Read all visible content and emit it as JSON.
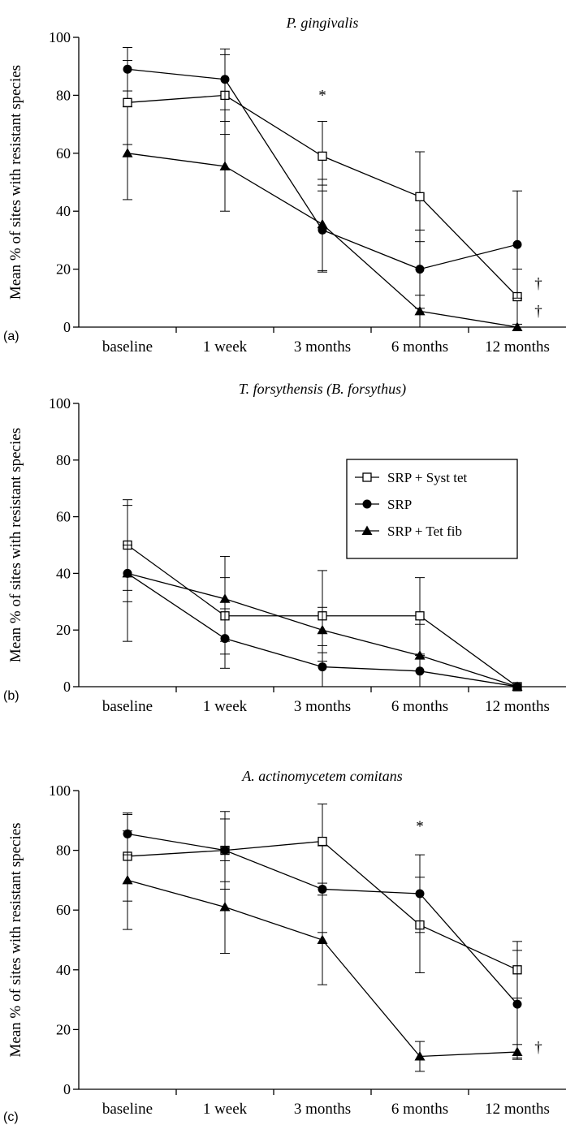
{
  "figure": {
    "legend_entries": [
      "SRP + Syst tet",
      "SRP",
      "SRP + Tet fib"
    ]
  },
  "chart_data": [
    {
      "type": "line",
      "panel_label": "(a)",
      "title": "P. gingivalis",
      "ylabel": "Mean % of sites with resistant species",
      "xlabel": "",
      "categories": [
        "baseline",
        "1 week",
        "3 months",
        "6 months",
        "12 months"
      ],
      "ylim": [
        0,
        100
      ],
      "yticks": [
        0,
        20,
        40,
        60,
        80,
        100
      ],
      "grid": false,
      "legend": "none",
      "series": [
        {
          "name": "SRP + Syst tet",
          "marker": "open-square",
          "values": [
            77.5,
            80,
            59,
            45,
            10.5
          ],
          "err_upper": [
            92,
            94,
            71,
            60.5,
            20
          ],
          "err_lower": [
            63,
            66.5,
            47,
            29.5,
            1
          ]
        },
        {
          "name": "SRP",
          "marker": "filled-circle",
          "values": [
            89,
            85.5,
            33.5,
            20,
            28.5
          ],
          "err_upper": [
            96.5,
            96,
            49,
            33.5,
            47
          ],
          "err_lower": [
            81.5,
            75,
            19,
            6.5,
            10
          ]
        },
        {
          "name": "SRP + Tet fib",
          "marker": "filled-triangle",
          "values": [
            60,
            55.5,
            35.5,
            5.5,
            0
          ],
          "err_upper": [
            76,
            71,
            51,
            11,
            0
          ],
          "err_lower": [
            44,
            40,
            19.5,
            0,
            0
          ]
        }
      ],
      "annotations": [
        {
          "text": "*",
          "category": "3 months",
          "y": 80
        },
        {
          "text": "†",
          "category": "12 months",
          "y": 15
        },
        {
          "text": "†",
          "category": "12 months",
          "y": 5.5
        }
      ]
    },
    {
      "type": "line",
      "panel_label": "(b)",
      "title": "T. forsythensis (B. forsythus)",
      "ylabel": "Mean % of sites with resistant species",
      "xlabel": "",
      "categories": [
        "baseline",
        "1 week",
        "3 months",
        "6 months",
        "12 months"
      ],
      "ylim": [
        0,
        100
      ],
      "yticks": [
        0,
        20,
        40,
        60,
        80,
        100
      ],
      "grid": false,
      "legend": "right",
      "series": [
        {
          "name": "SRP + Syst tet",
          "marker": "open-square",
          "values": [
            50,
            25,
            25,
            25,
            0
          ],
          "err_upper": [
            66,
            38.5,
            41,
            38.5,
            0
          ],
          "err_lower": [
            34,
            11.5,
            9,
            11.5,
            0
          ]
        },
        {
          "name": "SRP",
          "marker": "filled-circle",
          "values": [
            40,
            17,
            7,
            5.5,
            0
          ],
          "err_upper": [
            64,
            27.5,
            14.5,
            11,
            0
          ],
          "err_lower": [
            16,
            6.5,
            0,
            0,
            0
          ]
        },
        {
          "name": "SRP + Tet fib",
          "marker": "filled-triangle",
          "values": [
            40,
            31,
            20,
            11,
            0
          ],
          "err_upper": [
            50,
            46,
            28,
            22,
            0
          ],
          "err_lower": [
            30,
            16,
            12,
            0,
            0
          ]
        }
      ],
      "annotations": []
    },
    {
      "type": "line",
      "panel_label": "(c)",
      "title": "A. actinomycetem comitans",
      "ylabel": "Mean % of sites with resistant species",
      "xlabel": "",
      "categories": [
        "baseline",
        "1 week",
        "3 months",
        "6 months",
        "12 months"
      ],
      "ylim": [
        0,
        100
      ],
      "yticks": [
        0,
        20,
        40,
        60,
        80,
        100
      ],
      "grid": false,
      "legend": "none",
      "series": [
        {
          "name": "SRP + Syst tet",
          "marker": "open-square",
          "values": [
            78,
            80,
            83,
            55,
            40
          ],
          "err_upper": [
            92,
            93,
            95.5,
            71,
            49.5
          ],
          "err_lower": [
            63,
            67,
            69,
            39,
            30.5
          ]
        },
        {
          "name": "SRP",
          "marker": "filled-circle",
          "values": [
            85.5,
            80,
            67,
            65.5,
            28.5
          ],
          "err_upper": [
            92.5,
            90.5,
            81.5,
            78.5,
            46.5
          ],
          "err_lower": [
            78.5,
            69.5,
            52.5,
            52.5,
            10.5
          ]
        },
        {
          "name": "SRP + Tet fib",
          "marker": "filled-triangle",
          "values": [
            70,
            61,
            50,
            11,
            12.5
          ],
          "err_upper": [
            86.5,
            76.5,
            65,
            16,
            15
          ],
          "err_lower": [
            53.5,
            45.5,
            35,
            6,
            10
          ]
        }
      ],
      "annotations": [
        {
          "text": "*",
          "category": "6 months",
          "y": 88
        },
        {
          "text": "†",
          "category": "12 months",
          "y": 14
        }
      ]
    }
  ]
}
